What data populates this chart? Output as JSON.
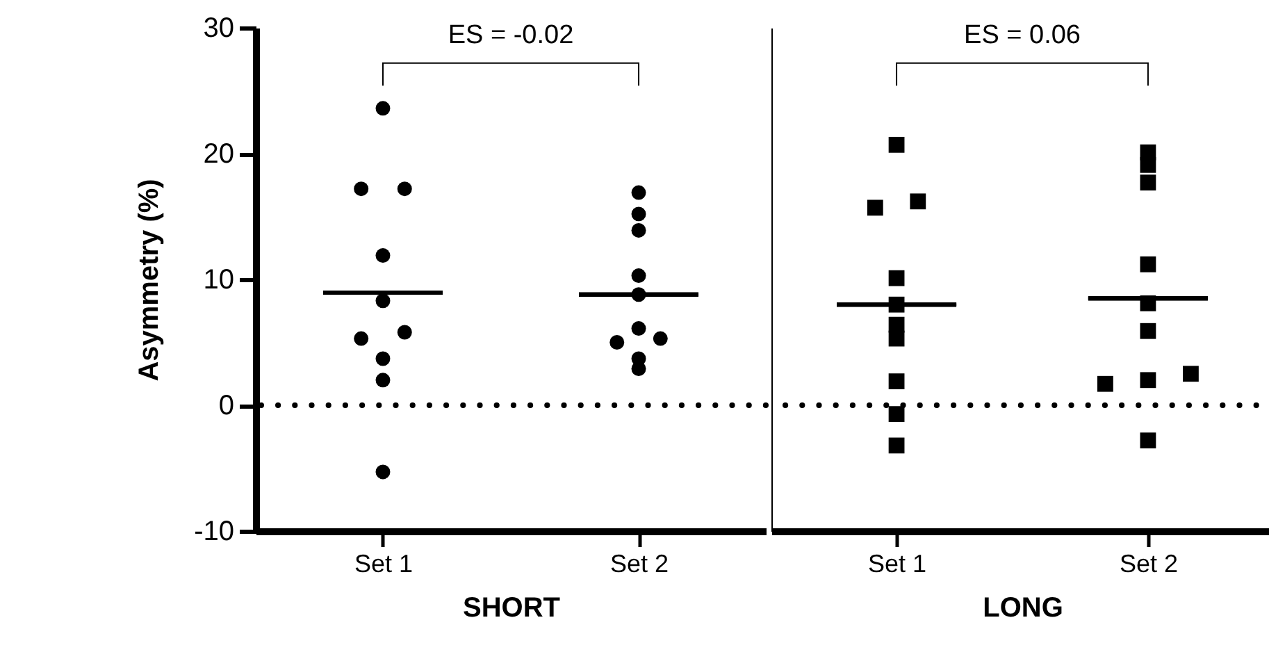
{
  "chart_data": [
    {
      "type": "scatter",
      "categories": [
        "Set 1",
        "Set 2"
      ],
      "xlabel": "SHORT",
      "ylabel": "Asymmetry (%)",
      "ylim": [
        -10,
        30
      ],
      "yticks": [
        -10,
        0,
        10,
        20,
        30
      ],
      "annotations": [
        "ES = -0.02"
      ],
      "ref_lines": [
        {
          "axis": "y",
          "value": 0,
          "line_style": "dotted",
          "color": "#000000"
        }
      ],
      "series": [
        {
          "type": "box",
          "color": "#000000",
          "boxes": [
            {
              "low": 8.95,
              "q1": 8.95,
              "median": 8.95,
              "q3": 8.95,
              "high": 8.95
            },
            {
              "low": 8.8,
              "q1": 8.8,
              "median": 8.8,
              "q3": 8.8,
              "high": 8.8
            }
          ]
        },
        {
          "color": "#000000",
          "marker": "circle",
          "x": [
            "Set 1",
            "Set 1",
            "Set 1",
            "Set 1",
            "Set 1",
            "Set 1",
            "Set 1",
            "Set 1",
            "Set 1",
            "Set 1",
            "Set 2",
            "Set 2",
            "Set 2",
            "Set 2",
            "Set 2",
            "Set 2",
            "Set 2",
            "Set 2",
            "Set 2",
            "Set 2"
          ],
          "values": [
            23.6,
            17.2,
            17.2,
            11.9,
            8.3,
            5.8,
            5.3,
            3.7,
            2.0,
            -5.3,
            16.9,
            15.2,
            13.9,
            10.3,
            8.8,
            6.1,
            5.0,
            5.3,
            3.7,
            2.9
          ]
        }
      ]
    },
    {
      "type": "scatter",
      "categories": [
        "Set 1",
        "Set 2"
      ],
      "xlabel": "LONG",
      "ylim": [
        -10,
        30
      ],
      "tick_labels": "x",
      "annotations": [
        "ES = 0.06"
      ],
      "ref_lines": [
        {
          "axis": "y",
          "value": 0,
          "line_style": "dotted",
          "color": "#000000"
        }
      ],
      "series": [
        {
          "type": "box",
          "color": "#000000",
          "boxes": [
            {
              "low": 8.0,
              "q1": 8.0,
              "median": 8.0,
              "q3": 8.0,
              "high": 8.0
            },
            {
              "low": 8.5,
              "q1": 8.5,
              "median": 8.5,
              "q3": 8.5,
              "high": 8.5
            }
          ]
        },
        {
          "color": "#000000",
          "marker": "square",
          "x": [
            "Set 1",
            "Set 1",
            "Set 1",
            "Set 1",
            "Set 1",
            "Set 1",
            "Set 1",
            "Set 1",
            "Set 1",
            "Set 1",
            "Set 2",
            "Set 2",
            "Set 2",
            "Set 2",
            "Set 2",
            "Set 2",
            "Set 2",
            "Set 2",
            "Set 2",
            "Set 2"
          ],
          "values": [
            20.7,
            16.2,
            15.7,
            10.1,
            8.0,
            6.4,
            5.3,
            1.9,
            -0.7,
            -3.2,
            20.1,
            19.1,
            17.7,
            11.2,
            8.1,
            5.9,
            2.5,
            1.7,
            2.0,
            -2.8
          ]
        }
      ]
    }
  ]
}
